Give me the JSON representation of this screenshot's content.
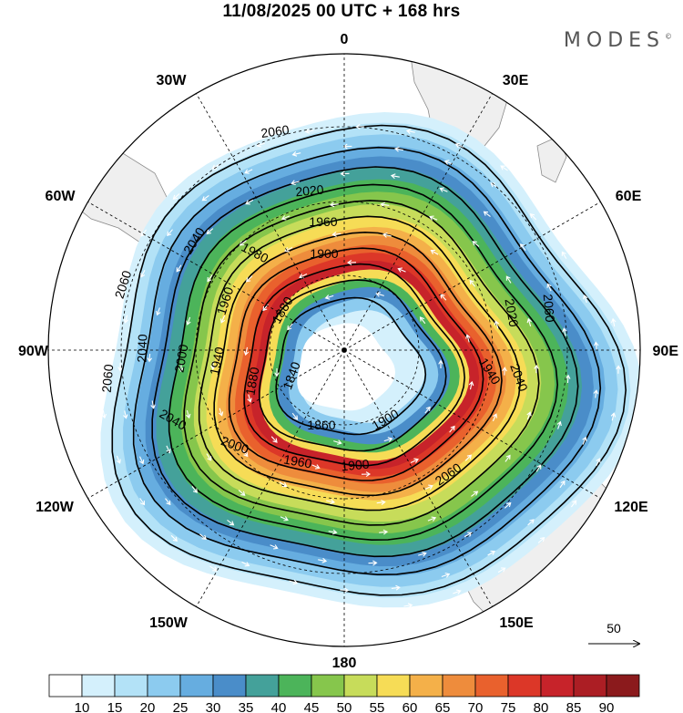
{
  "title": "11/08/2025  00 UTC  + 168 hrs",
  "brand": "MODES",
  "brand_mark": "©",
  "longitude_labels": {
    "top": "0",
    "bottom": "180",
    "left": "90W",
    "right": "90E",
    "ul1": "30W",
    "ul2": "60W",
    "ur1": "30E",
    "ur2": "60E",
    "ll1": "120W",
    "ll2": "150W",
    "lr1": "120E",
    "lr2": "150E"
  },
  "contour_labels": [
    "2060",
    "2020",
    "1960",
    "1900",
    "1980",
    "2040",
    "1960",
    "2060",
    "1880",
    "1840",
    "1940",
    "2000",
    "2040",
    "2060",
    "1880",
    "1860",
    "1900",
    "2000",
    "1960",
    "1900",
    "2060",
    "2020",
    "1940",
    "2060",
    "2040",
    "2040"
  ],
  "reference_vector": {
    "label": "50"
  },
  "colorbar": {
    "labels": [
      "10",
      "15",
      "20",
      "25",
      "30",
      "35",
      "40",
      "45",
      "50",
      "55",
      "60",
      "65",
      "70",
      "75",
      "80",
      "85",
      "90"
    ],
    "colors": [
      "#ffffff",
      "#d4f0fc",
      "#b3e2f7",
      "#8ccbef",
      "#66ade0",
      "#4a8dc9",
      "#44a19a",
      "#4cb45a",
      "#86c64c",
      "#c7dc5a",
      "#f6dc56",
      "#f4b049",
      "#ee8c3c",
      "#e9612d",
      "#dc3728",
      "#c7232a",
      "#ac1e24",
      "#8b1a1c"
    ]
  },
  "bands": [
    {
      "speed": 12,
      "color": "#d4f0fc"
    },
    {
      "speed": 17,
      "color": "#b3e2f7"
    },
    {
      "speed": 22,
      "color": "#8ccbef"
    },
    {
      "speed": 27,
      "color": "#66ade0"
    },
    {
      "speed": 32,
      "color": "#4a8dc9"
    },
    {
      "speed": 37,
      "color": "#44a19a"
    },
    {
      "speed": 42,
      "color": "#4cb45a"
    },
    {
      "speed": 47,
      "color": "#86c64c"
    },
    {
      "speed": 52,
      "color": "#c7dc5a"
    },
    {
      "speed": 57,
      "color": "#f6dc56"
    },
    {
      "speed": 62,
      "color": "#f4b049"
    },
    {
      "speed": 67,
      "color": "#ee8c3c"
    },
    {
      "speed": 72,
      "color": "#e9612d"
    },
    {
      "speed": 77,
      "color": "#dc3728"
    },
    {
      "speed": 82,
      "color": "#c7232a"
    },
    {
      "speed": 60,
      "color": "#f6dc56"
    },
    {
      "speed": 45,
      "color": "#4cb45a"
    },
    {
      "speed": 32,
      "color": "#4a8dc9"
    },
    {
      "speed": 20,
      "color": "#8ccbef"
    },
    {
      "speed": 12,
      "color": "#d4f0fc"
    }
  ]
}
